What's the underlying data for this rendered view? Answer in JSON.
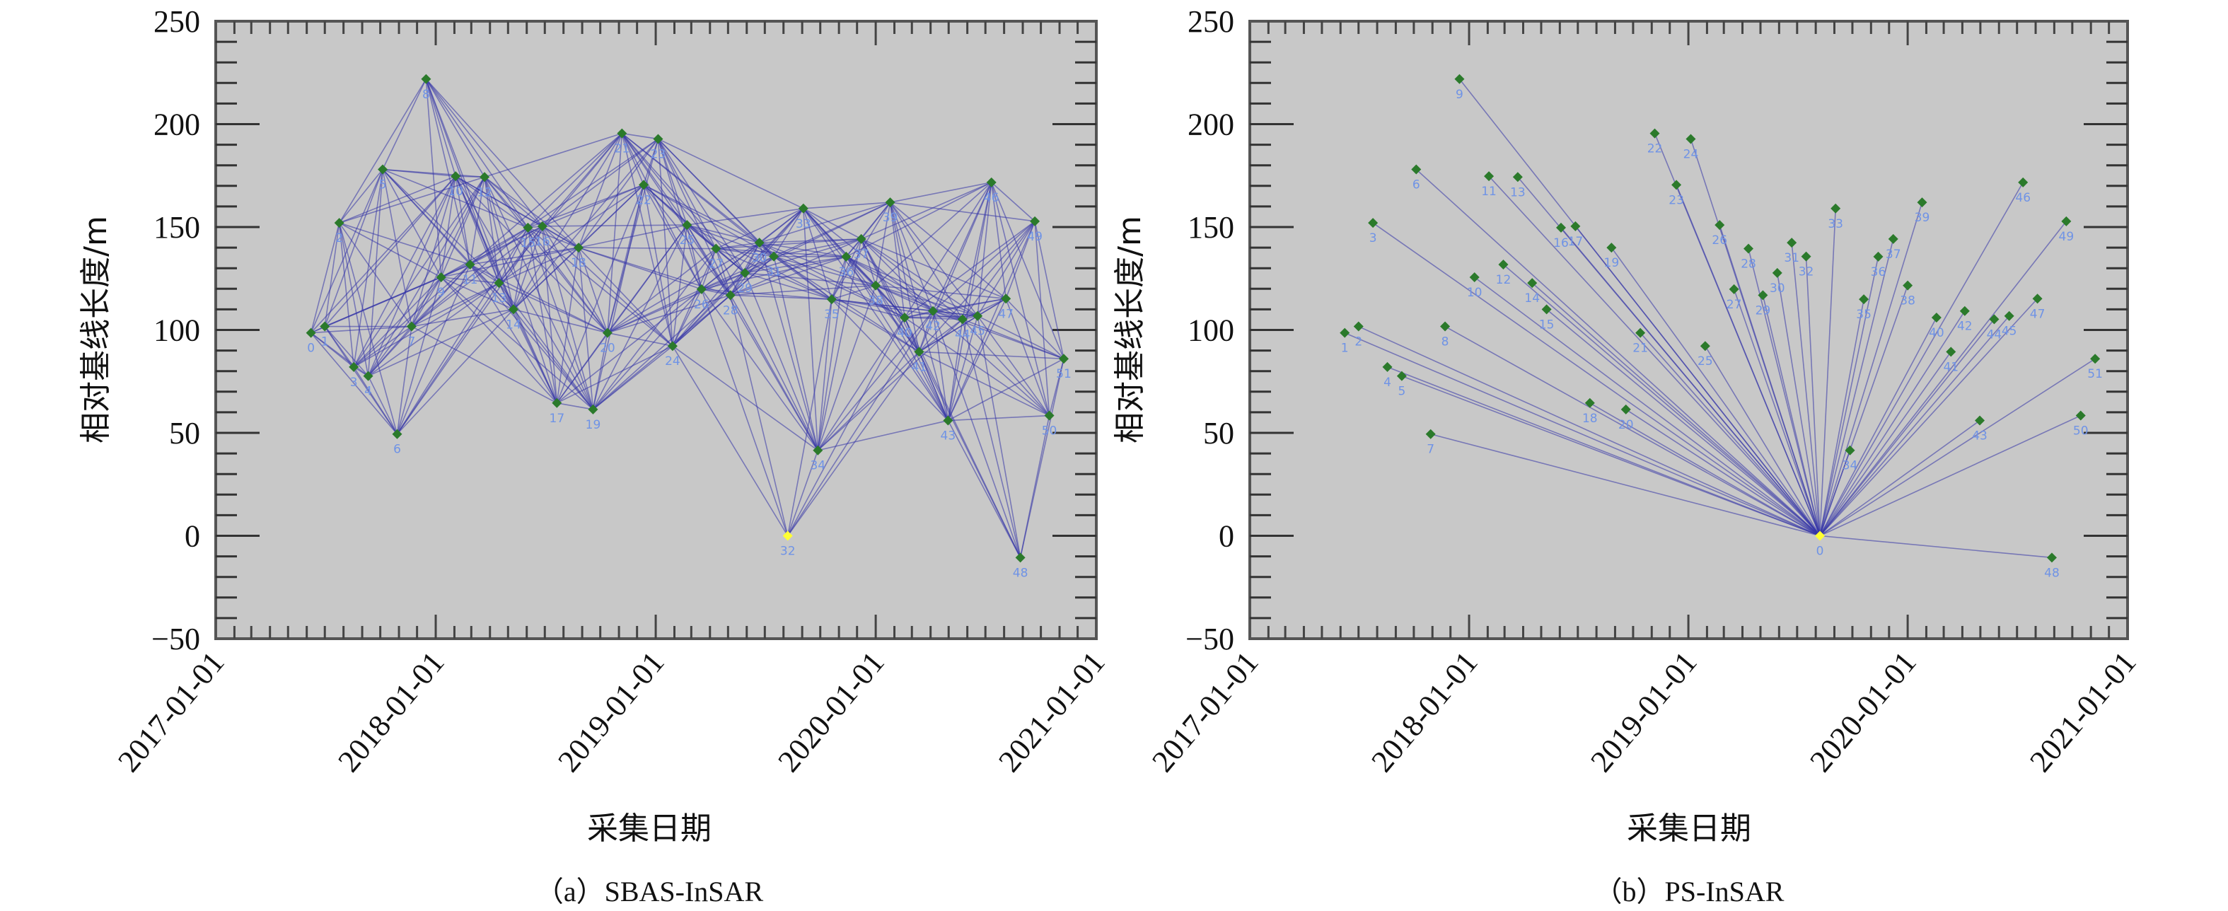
{
  "colors": {
    "plot_bg": "#c8c8c8",
    "frame": "#555555",
    "edge": "#3434a8",
    "point": "#2b7a2b",
    "master": "#ffff33",
    "point_label": "#6f93e6"
  },
  "chart_data": [
    {
      "type": "scatter",
      "subtype": "baseline-network",
      "caption": "（a）SBAS-InSAR",
      "xlabel": "采集日期",
      "ylabel": "相对基线长度/m",
      "xlim": [
        "2017-01-01",
        "2021-01-01"
      ],
      "ylim": [
        -50,
        250
      ],
      "xticks": [
        "2017-01-01",
        "2018-01-01",
        "2019-01-01",
        "2020-01-01",
        "2021-01-01"
      ],
      "yticks": [
        250,
        200,
        150,
        100,
        50,
        0,
        -50
      ],
      "master_label": "32",
      "labels": [
        "0",
        "1",
        "2",
        "3",
        "4",
        "5",
        "6",
        "7",
        "8",
        "9",
        "10",
        "11",
        "12",
        "13",
        "14",
        "15",
        "16",
        "17",
        "18",
        "19",
        "20",
        "21",
        "22",
        "23",
        "24",
        "25",
        "26",
        "27",
        "28",
        "29",
        "30",
        "31",
        "32",
        "33",
        "34",
        "35",
        "36",
        "37",
        "38",
        "39",
        "40",
        "41",
        "42",
        "43",
        "44",
        "45",
        "46",
        "47",
        "48",
        "49",
        "50",
        "51"
      ],
      "dates": [
        "2017-06-08",
        "2017-07-01",
        "2017-07-25",
        "2017-08-18",
        "2017-09-11",
        "2017-10-05",
        "2017-10-29",
        "2017-11-22",
        "2017-12-16",
        "2018-01-10",
        "2018-02-03",
        "2018-02-27",
        "2018-03-23",
        "2018-04-16",
        "2018-05-10",
        "2018-06-03",
        "2018-06-27",
        "2018-07-21",
        "2018-08-26",
        "2018-09-19",
        "2018-10-13",
        "2018-11-06",
        "2018-12-12",
        "2019-01-05",
        "2019-01-29",
        "2019-02-22",
        "2019-03-18",
        "2019-04-11",
        "2019-05-05",
        "2019-05-29",
        "2019-06-22",
        "2019-07-16",
        "2019-08-08",
        "2019-09-03",
        "2019-09-27",
        "2019-10-20",
        "2019-11-13",
        "2019-12-08",
        "2020-01-01",
        "2020-01-25",
        "2020-02-18",
        "2020-03-13",
        "2020-04-05",
        "2020-04-30",
        "2020-05-24",
        "2020-06-18",
        "2020-07-11",
        "2020-08-04",
        "2020-08-28",
        "2020-09-21",
        "2020-10-15",
        "2020-11-08"
      ],
      "baselines": [
        98.6,
        101.7,
        152,
        82,
        77.6,
        178,
        49.4,
        101.7,
        221.9,
        125.6,
        174.7,
        131.8,
        174.3,
        122.8,
        110,
        149.7,
        150.4,
        64.5,
        140,
        61.4,
        98.6,
        195.5,
        170.5,
        192.8,
        92.2,
        151,
        119.8,
        139.5,
        116.9,
        127.7,
        142.4,
        135.7,
        0,
        159,
        41.5,
        114.9,
        135.6,
        144.2,
        121.6,
        162,
        106,
        89.4,
        109.2,
        56,
        105.2,
        106.8,
        171.7,
        115.2,
        -10.6,
        152.8,
        58.4,
        86
      ]
    },
    {
      "type": "scatter",
      "subtype": "baseline-star",
      "caption": "（b）PS-InSAR",
      "xlabel": "采集日期",
      "ylabel": "相对基线长度/m",
      "xlim": [
        "2017-01-01",
        "2021-01-01"
      ],
      "ylim": [
        -50,
        250
      ],
      "xticks": [
        "2017-01-01",
        "2018-01-01",
        "2019-01-01",
        "2020-01-01",
        "2021-01-01"
      ],
      "yticks": [
        250,
        200,
        150,
        100,
        50,
        0,
        -50
      ],
      "master_label": "0",
      "labels": [
        "1",
        "2",
        "3",
        "4",
        "5",
        "6",
        "7",
        "8",
        "9",
        "10",
        "11",
        "12",
        "13",
        "14",
        "15",
        "16",
        "17",
        "18",
        "19",
        "20",
        "21",
        "22",
        "23",
        "24",
        "25",
        "26",
        "27",
        "28",
        "29",
        "30",
        "31",
        "32",
        "0",
        "33",
        "34",
        "35",
        "36",
        "37",
        "38",
        "39",
        "40",
        "41",
        "42",
        "43",
        "44",
        "45",
        "46",
        "47",
        "48",
        "49",
        "50",
        "51"
      ],
      "dates": [
        "2017-06-08",
        "2017-07-01",
        "2017-07-25",
        "2017-08-18",
        "2017-09-11",
        "2017-10-05",
        "2017-10-29",
        "2017-11-22",
        "2017-12-16",
        "2018-01-10",
        "2018-02-03",
        "2018-02-27",
        "2018-03-23",
        "2018-04-16",
        "2018-05-10",
        "2018-06-03",
        "2018-06-27",
        "2018-07-21",
        "2018-08-26",
        "2018-09-19",
        "2018-10-13",
        "2018-11-06",
        "2018-12-12",
        "2019-01-05",
        "2019-01-29",
        "2019-02-22",
        "2019-03-18",
        "2019-04-11",
        "2019-05-05",
        "2019-05-29",
        "2019-06-22",
        "2019-07-16",
        "2019-08-08",
        "2019-09-03",
        "2019-09-27",
        "2019-10-20",
        "2019-11-13",
        "2019-12-08",
        "2020-01-01",
        "2020-01-25",
        "2020-02-18",
        "2020-03-13",
        "2020-04-05",
        "2020-04-30",
        "2020-05-24",
        "2020-06-18",
        "2020-07-11",
        "2020-08-04",
        "2020-08-28",
        "2020-09-21",
        "2020-10-15",
        "2020-11-08"
      ],
      "baselines": [
        98.6,
        101.7,
        152,
        82,
        77.6,
        178,
        49.4,
        101.7,
        221.9,
        125.6,
        174.7,
        131.8,
        174.3,
        122.8,
        110,
        149.7,
        150.4,
        64.5,
        140,
        61.4,
        98.6,
        195.5,
        170.5,
        192.8,
        92.2,
        151,
        119.8,
        139.5,
        116.9,
        127.7,
        142.4,
        135.7,
        0,
        159,
        41.5,
        114.9,
        135.6,
        144.2,
        121.6,
        162,
        106,
        89.4,
        109.2,
        56,
        105.2,
        106.8,
        171.7,
        115.2,
        -10.6,
        152.8,
        58.4,
        86
      ]
    }
  ]
}
